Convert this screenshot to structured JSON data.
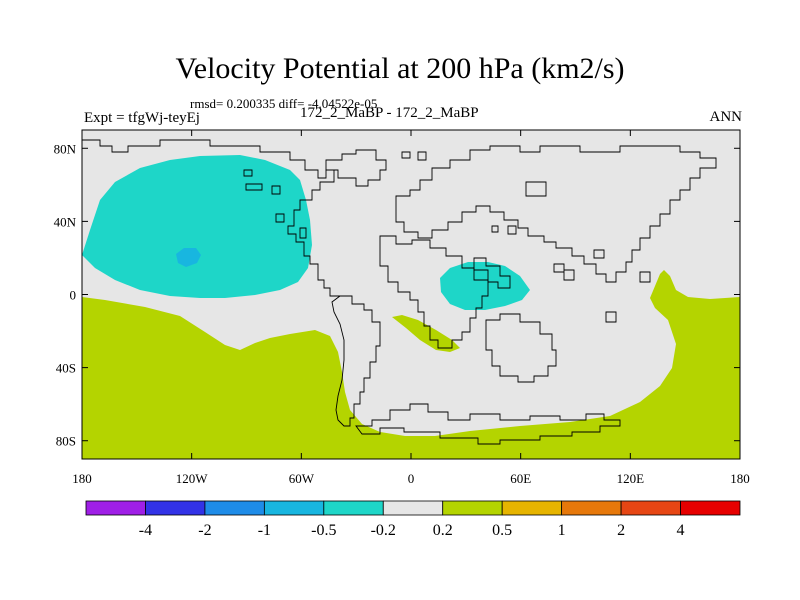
{
  "map": {
    "title": "Velocity Potential at 200 hPa (km2/s)",
    "subtitle": "rmsd= 0.200335 diff= -4.04522e-05",
    "left_label": "Expt = tfgWj-teyEj",
    "center_label": "172_2_MaBP - 172_2_MaBP",
    "right_label": "ANN",
    "lon_ticks": [
      "180",
      "120W",
      "60W",
      "0",
      "60E",
      "120E",
      "180"
    ],
    "lat_ticks": [
      "80N",
      "40N",
      "0",
      "40S",
      "80S"
    ],
    "background_color": "#e6e6e6",
    "fields": [
      {
        "name": "west-hemisphere-negative",
        "level": "-0.5",
        "color": "#1ed6c8"
      },
      {
        "name": "west-hemisphere-minimum",
        "level": "-1",
        "color": "#18b6e0"
      },
      {
        "name": "africa-negative",
        "level": "-0.5",
        "color": "#1ed6c8"
      },
      {
        "name": "southern-positive",
        "level": "0.2",
        "color": "#b4d400"
      }
    ]
  },
  "colorbar": {
    "labels": [
      "-4",
      "-2",
      "-1",
      "-0.5",
      "-0.2",
      "0.2",
      "0.5",
      "1",
      "2",
      "4"
    ],
    "colors": [
      "#9f1fe6",
      "#3232e6",
      "#1e8ce8",
      "#18b6e0",
      "#1ed6c8",
      "#e6e6e6",
      "#b4d400",
      "#e6b400",
      "#e6780a",
      "#e64614",
      "#e60000"
    ]
  }
}
